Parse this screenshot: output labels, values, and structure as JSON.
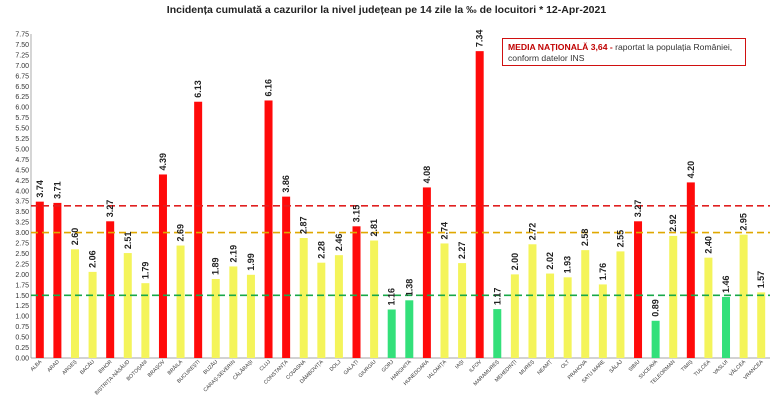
{
  "chart_data": {
    "type": "bar",
    "title": "Incidența cumulată a cazurilor la nivel județean pe 14 zile la ‰ de locuitori *   12-Apr-2021",
    "categories": [
      "ALBA",
      "ARAD",
      "ARGEȘ",
      "BACĂU",
      "BIHOR",
      "BISTRIȚA-NĂSĂUD",
      "BOTOȘANI",
      "BRAȘOV",
      "BRĂILA",
      "BUCUREȘTI",
      "BUZĂU",
      "CARAȘ-SEVERIN",
      "CĂLĂRAȘI",
      "CLUJ",
      "CONSTANȚA",
      "COVASNA",
      "DÂMBOVIȚA",
      "DOLJ",
      "GALAȚI",
      "GIURGIU",
      "GORJ",
      "HARGHITA",
      "HUNEDOARA",
      "IALOMIȚA",
      "IAȘI",
      "ILFOV",
      "MARAMUREȘ",
      "MEHEDINȚI",
      "MUREȘ",
      "NEAMȚ",
      "OLT",
      "PRAHOVA",
      "SATU MARE",
      "SĂLAJ",
      "SIBIU",
      "SUCEAVA",
      "TELEORMAN",
      "TIMIȘ",
      "TULCEA",
      "VASLUI",
      "VÂLCEA",
      "VRANCEA"
    ],
    "values": [
      3.74,
      3.71,
      2.6,
      2.06,
      3.27,
      2.51,
      1.79,
      4.39,
      2.69,
      6.13,
      1.89,
      2.19,
      1.99,
      6.16,
      3.86,
      2.87,
      2.28,
      2.46,
      3.15,
      2.81,
      1.16,
      1.38,
      4.08,
      2.74,
      2.27,
      7.34,
      1.17,
      2.0,
      2.72,
      2.02,
      1.93,
      2.58,
      1.76,
      2.55,
      3.27,
      0.89,
      2.92,
      4.2,
      2.4,
      1.46,
      2.95,
      1.57
    ],
    "value_labels": [
      "3.74",
      "3.71",
      "2.60",
      "2.06",
      "3.27",
      "2.51",
      "1.79",
      "4.39",
      "2.69",
      "6.13",
      "1.89",
      "2.19",
      "1.99",
      "6.16",
      "3.86",
      "2.87",
      "2.28",
      "2.46",
      "3.15",
      "2.81",
      "1.16",
      "1.38",
      "4.08",
      "2.74",
      "2.27",
      "7.34",
      "1.17",
      "2.00",
      "2.72",
      "2.02",
      "1.93",
      "2.58",
      "1.76",
      "2.55",
      "3.27",
      "0.89",
      "2.92",
      "4.20",
      "2.40",
      "1.46",
      "2.95",
      "1.57"
    ],
    "ylim": [
      0,
      7.75
    ],
    "ytick_step": 0.25,
    "ytick_labels": [
      "0.00",
      "0.25",
      "0.50",
      "0.75",
      "1.00",
      "1.25",
      "1.50",
      "1.75",
      "2.00",
      "2.25",
      "2.50",
      "2.75",
      "3.00",
      "3.25",
      "3.50",
      "3.75",
      "4.00",
      "4.25",
      "4.50",
      "4.75",
      "5.00",
      "5.25",
      "5.50",
      "5.75",
      "6.00",
      "6.25",
      "6.50",
      "6.75",
      "7.00",
      "7.25",
      "7.50",
      "7.75"
    ],
    "reference_lines": [
      {
        "value": 1.5,
        "color": "#18a84a"
      },
      {
        "value": 3.0,
        "color": "#e0a800"
      },
      {
        "value": 3.64,
        "color": "#e02020"
      }
    ],
    "colors": {
      "green": "#33e07a",
      "yellow": "#f4f45a",
      "red": "#ff0a0a"
    },
    "thresholds": {
      "green_max": 1.5,
      "yellow_max": 3.0
    }
  },
  "annotation": {
    "highlight": "MEDIA NAȚIONALĂ  3,64 -",
    "text": " raportat la populația României, conform datelor INS"
  }
}
